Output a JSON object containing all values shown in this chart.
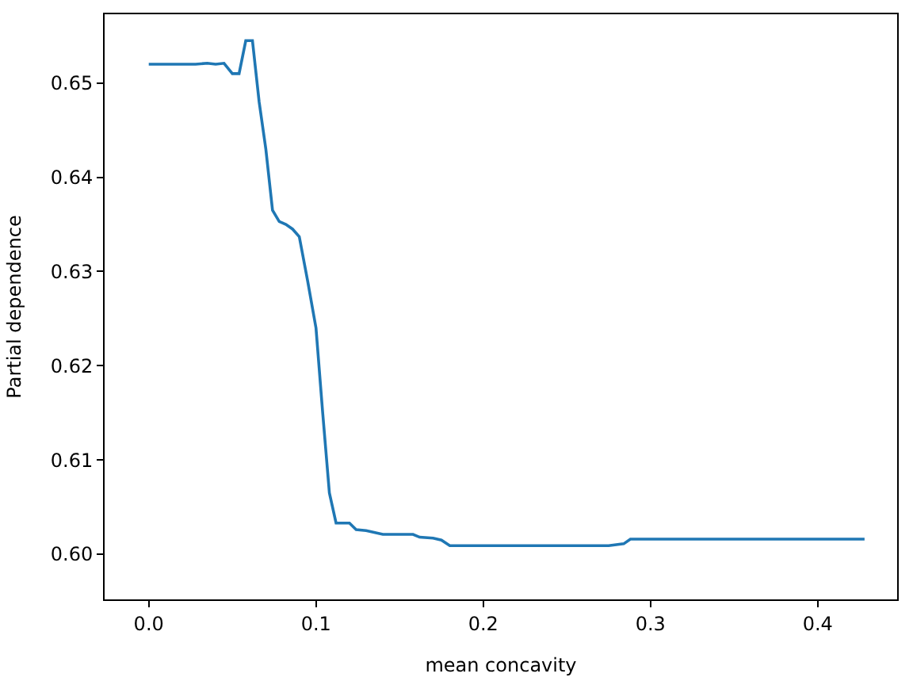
{
  "chart_data": {
    "type": "line",
    "xlabel": "mean concavity",
    "ylabel": "Partial dependence",
    "x": [
      0,
      0.028,
      0.035,
      0.04,
      0.045,
      0.05,
      0.054,
      0.058,
      0.062,
      0.066,
      0.07,
      0.074,
      0.078,
      0.082,
      0.086,
      0.09,
      0.095,
      0.1,
      0.104,
      0.108,
      0.112,
      0.12,
      0.124,
      0.13,
      0.14,
      0.158,
      0.162,
      0.17,
      0.175,
      0.18,
      0.275,
      0.284,
      0.288,
      0.428
    ],
    "series": [
      {
        "color": "#1f77b4",
        "values": [
          0.652,
          0.652,
          0.6521,
          0.652,
          0.6521,
          0.651,
          0.651,
          0.6545,
          0.6545,
          0.648,
          0.643,
          0.6365,
          0.6353,
          0.635,
          0.6345,
          0.6337,
          0.629,
          0.624,
          0.615,
          0.6065,
          0.6033,
          0.6033,
          0.6026,
          0.6025,
          0.6021,
          0.6021,
          0.6018,
          0.6017,
          0.6015,
          0.6009,
          0.6009,
          0.6011,
          0.6016,
          0.6016
        ]
      }
    ],
    "xlim": [
      -0.0264,
      0.4475
    ],
    "ylim": [
      0.5952,
      0.6573
    ],
    "xticks": [
      {
        "value": 0,
        "label": "0.0"
      },
      0.1,
      0.2,
      0.3,
      0.4
    ],
    "yticks": [
      {
        "value": 0.6,
        "label": "0.60"
      },
      0.61,
      0.62,
      0.63,
      0.64,
      0.65
    ],
    "marker": "none",
    "line_style": "solid"
  }
}
